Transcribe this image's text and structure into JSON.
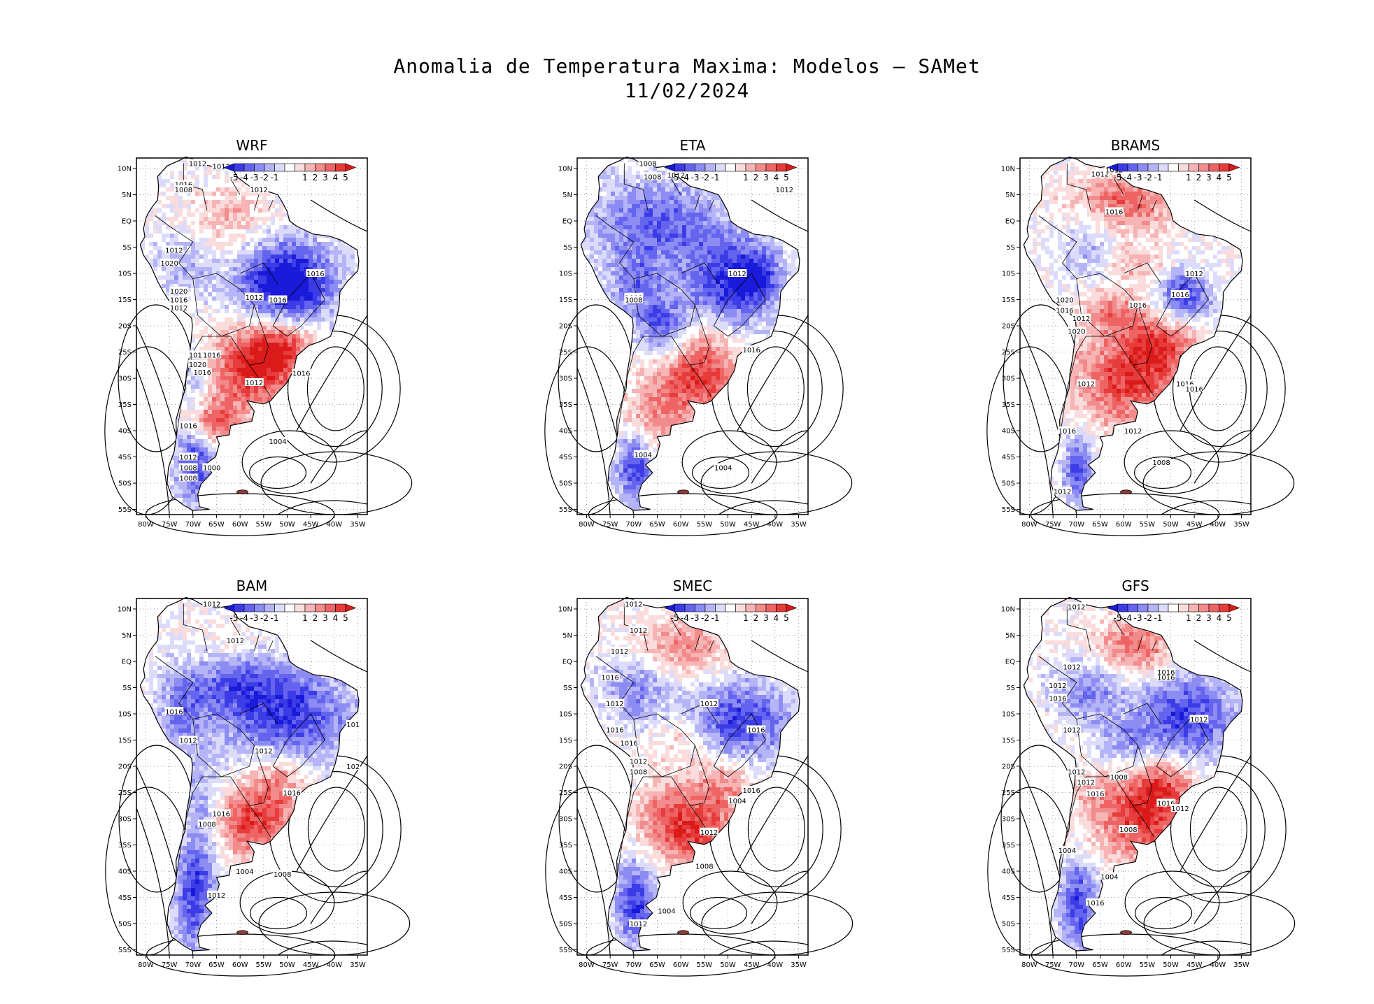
{
  "title": {
    "line1": "Anomalia de Temperatura Maxima: Modelos — SAMet",
    "line2": "11/02/2024"
  },
  "axes": {
    "lat_labels": [
      "10N",
      "5N",
      "EQ",
      "5S",
      "10S",
      "15S",
      "20S",
      "25S",
      "30S",
      "35S",
      "40S",
      "45S",
      "50S",
      "55S"
    ],
    "lon_labels": [
      "80W",
      "75W",
      "70W",
      "65W",
      "60W",
      "55W",
      "50W",
      "45W",
      "40W",
      "35W"
    ]
  },
  "colorbar": {
    "labels": [
      "-5",
      "-4",
      "-3",
      "-2",
      "-1",
      "1",
      "2",
      "3",
      "4",
      "5"
    ],
    "colors": [
      "#1a1adb",
      "#3c3ce6",
      "#6464ee",
      "#8c8cf2",
      "#b4b4f6",
      "#dcdcfa",
      "#ffffff",
      "#fadcdc",
      "#f6b4b4",
      "#f28c8c",
      "#ee6464",
      "#e63c3c",
      "#db1a1a"
    ]
  },
  "panels": [
    {
      "name": "WRF",
      "isobars": [
        "1012",
        "1012",
        "1016",
        "1008",
        "1012",
        "1012",
        "1020",
        "1020",
        "1016",
        "1012",
        "1012",
        "1016",
        "1016",
        "1012",
        "1016",
        "1020",
        "1016",
        "1012",
        "1016",
        "1016",
        "1012",
        "1008",
        "1008",
        "1004",
        "1000"
      ]
    },
    {
      "name": "ETA",
      "isobars": [
        "1008",
        "1008",
        "1012",
        "1012",
        "1012",
        "1008",
        "1008",
        "1016",
        "1004",
        "1004"
      ]
    },
    {
      "name": "BRAMS",
      "isobars": [
        "1012",
        "1012",
        "1016",
        "1012",
        "1016",
        "1020",
        "1016",
        "1012",
        "1016",
        "1016",
        "1020",
        "1012",
        "1016",
        "1012",
        "1016",
        "1008",
        "1012"
      ]
    },
    {
      "name": "BAM",
      "isobars": [
        "1012",
        "1012",
        "1016",
        "1012",
        "1012",
        "1016",
        "1016",
        "1008",
        "1008",
        "1004",
        "1012",
        "101",
        "102"
      ]
    },
    {
      "name": "SMEC",
      "isobars": [
        "1012",
        "1012",
        "1012",
        "1016",
        "1012",
        "1016",
        "1016",
        "1012",
        "1012",
        "1008",
        "1016",
        "1016",
        "1012",
        "1008",
        "1004",
        "1004",
        "1012"
      ]
    },
    {
      "name": "GFS",
      "isobars": [
        "1012",
        "1012",
        "1012",
        "1016",
        "1012",
        "1012",
        "1016",
        "1016",
        "1012",
        "1012",
        "1008",
        "1016",
        "1016",
        "1012",
        "1008",
        "1004",
        "1004",
        "1016"
      ]
    }
  ]
}
